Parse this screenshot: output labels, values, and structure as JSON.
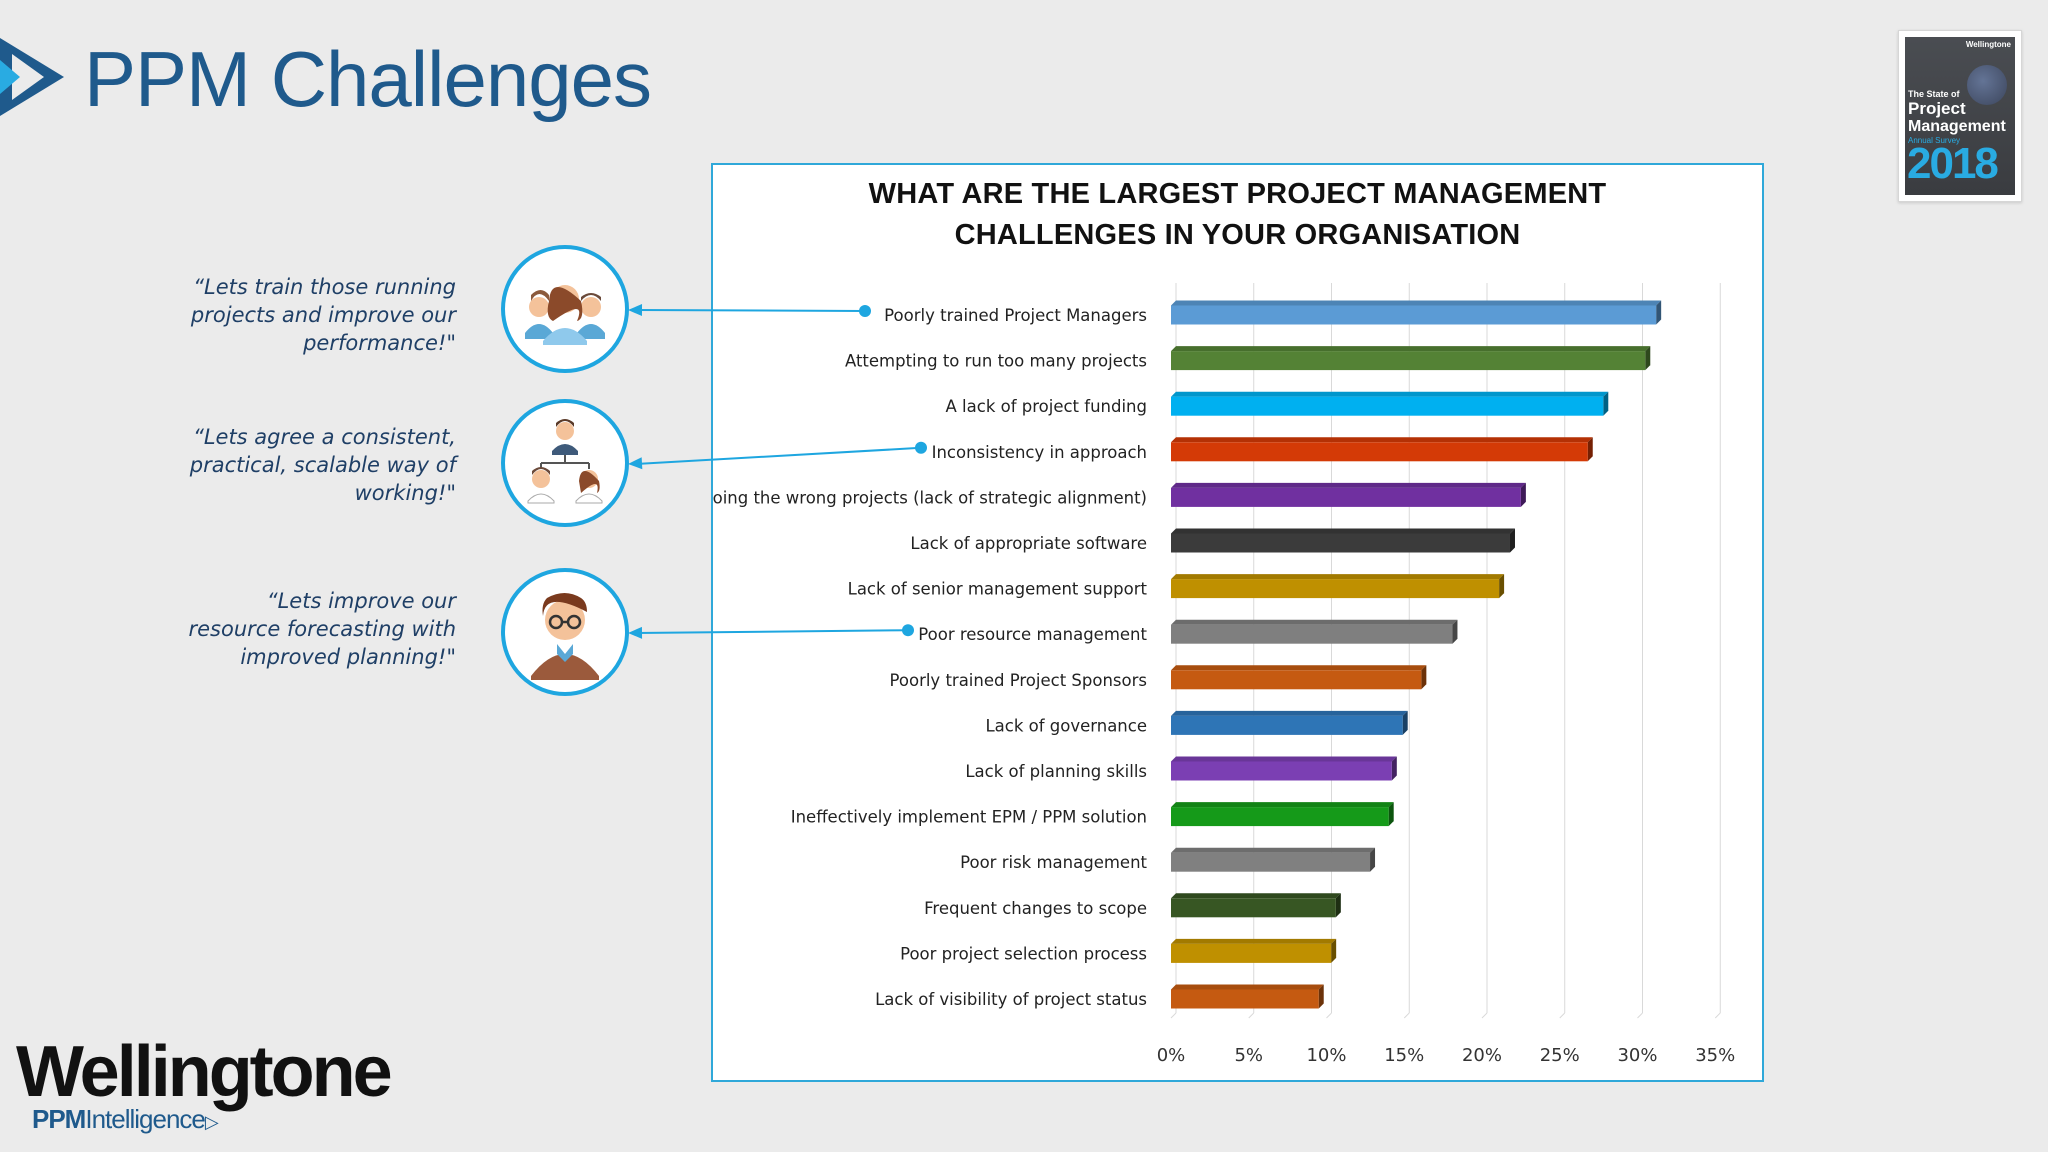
{
  "header": {
    "title": "PPM Challenges"
  },
  "cover": {
    "brand": "Wellingtone",
    "line1": "The State of",
    "line2": "Project",
    "line3": "Management",
    "line4": "Annual Survey",
    "year": "2018"
  },
  "quotes": [
    {
      "lines": [
        "“Lets train those running",
        "projects and improve our",
        "performance!\""
      ]
    },
    {
      "lines": [
        "“Lets agree a consistent,",
        "practical, scalable way of",
        "working!\""
      ]
    },
    {
      "lines": [
        "“Lets improve our",
        "resource forecasting with",
        "improved planning!\""
      ]
    }
  ],
  "icons": [
    {
      "name": "team-group-icon"
    },
    {
      "name": "org-hierarchy-icon"
    },
    {
      "name": "person-with-glasses-icon"
    }
  ],
  "footer": {
    "brand": "Wellingtone",
    "sub_bold": "PPM",
    "sub_rest": "Intelligence"
  },
  "colors": {
    "accent": "#1ea6e0",
    "title": "#1f5a8c"
  },
  "chart_data": {
    "type": "bar",
    "orientation": "horizontal",
    "title_lines": [
      "WHAT ARE THE LARGEST PROJECT MANAGEMENT",
      "CHALLENGES IN YOUR ORGANISATION"
    ],
    "categories": [
      "Poorly trained Project Managers",
      "Attempting to run too many projects",
      "A lack of project funding",
      "Inconsistency in approach",
      "Doing the wrong projects (lack of strategic alignment)",
      "Lack of appropriate software",
      "Lack of senior management support",
      "Poor resource management",
      "Poorly trained Project Sponsors",
      "Lack of governance",
      "Lack of planning skills",
      "Ineffectively implement EPM / PPM solution",
      "Poor risk management",
      "Frequent changes to scope",
      "Poor project selection process",
      "Lack of visibility of project status"
    ],
    "values": [
      31.2,
      30.5,
      27.8,
      26.8,
      22.5,
      21.8,
      21.1,
      18.1,
      16.1,
      14.9,
      14.2,
      14.0,
      12.8,
      10.6,
      10.3,
      9.5
    ],
    "colors": [
      "#5b9bd5",
      "#548235",
      "#00b0f0",
      "#d43a06",
      "#7030a0",
      "#3b3b3b",
      "#bf9000",
      "#7f7f7f",
      "#c55a11",
      "#2e75b6",
      "#7b3fb3",
      "#159a19",
      "#808080",
      "#375623",
      "#bf9000",
      "#c55a11"
    ],
    "xticks": [
      "0%",
      "5%",
      "10%",
      "15%",
      "20%",
      "25%",
      "30%",
      "35%"
    ],
    "xlim": [
      0,
      35
    ],
    "grid": true,
    "highlighted": [
      0,
      3,
      7
    ]
  }
}
